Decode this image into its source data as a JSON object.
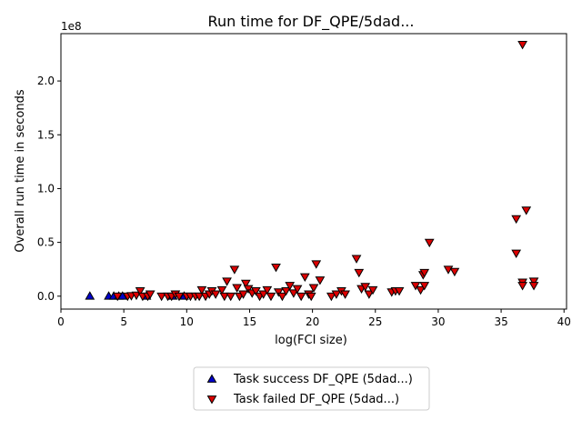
{
  "chart_data": {
    "type": "scatter",
    "title": "Run time for DF_QPE/5dad...",
    "xlabel": "log(FCI size)",
    "ylabel": "Overall run time in seconds",
    "y_offset_text": "1e8",
    "xlim": [
      0,
      40.2
    ],
    "ylim": [
      -0.12,
      2.44
    ],
    "x_ticks": [
      0,
      5,
      10,
      15,
      20,
      25,
      30,
      35,
      40
    ],
    "x_tick_labels": [
      "0",
      "5",
      "10",
      "15",
      "20",
      "25",
      "30",
      "35",
      "40"
    ],
    "y_ticks": [
      0.0,
      0.5,
      1.0,
      1.5,
      2.0
    ],
    "y_tick_labels": [
      "0.0",
      "0.5",
      "1.0",
      "1.5",
      "2.0"
    ],
    "grid": false,
    "legend_position": "below-center",
    "series": [
      {
        "name": "Task success DF_QPE (5dad...)",
        "marker": "triangle-up",
        "color": "#0000cc",
        "points": [
          [
            2.3,
            0.0
          ],
          [
            3.8,
            0.0
          ],
          [
            4.2,
            0.0
          ],
          [
            4.6,
            0.0
          ],
          [
            4.9,
            0.0
          ],
          [
            6.8,
            0.0
          ],
          [
            8.9,
            0.0
          ],
          [
            9.8,
            0.0
          ]
        ]
      },
      {
        "name": "Task failed DF_QPE (5dad...)",
        "marker": "triangle-down",
        "color": "#dd0000",
        "points": [
          [
            4.5,
            0.0
          ],
          [
            5.3,
            0.0
          ],
          [
            5.6,
            0.005
          ],
          [
            6.0,
            0.01
          ],
          [
            6.3,
            0.05
          ],
          [
            6.5,
            0.0
          ],
          [
            6.9,
            0.0
          ],
          [
            7.1,
            0.02
          ],
          [
            8.0,
            0.0
          ],
          [
            8.5,
            0.0
          ],
          [
            8.8,
            0.0
          ],
          [
            9.1,
            0.02
          ],
          [
            9.4,
            0.0
          ],
          [
            10.0,
            0.0
          ],
          [
            10.3,
            0.0
          ],
          [
            10.7,
            0.0
          ],
          [
            11.0,
            0.0
          ],
          [
            11.2,
            0.06
          ],
          [
            11.5,
            0.0
          ],
          [
            11.8,
            0.02
          ],
          [
            12.0,
            0.05
          ],
          [
            12.3,
            0.02
          ],
          [
            12.8,
            0.06
          ],
          [
            13.0,
            0.0
          ],
          [
            13.2,
            0.14
          ],
          [
            13.5,
            0.0
          ],
          [
            13.8,
            0.25
          ],
          [
            14.0,
            0.08
          ],
          [
            14.2,
            0.0
          ],
          [
            14.5,
            0.02
          ],
          [
            14.7,
            0.12
          ],
          [
            14.9,
            0.07
          ],
          [
            15.2,
            0.03
          ],
          [
            15.5,
            0.05
          ],
          [
            15.8,
            0.0
          ],
          [
            16.1,
            0.02
          ],
          [
            16.4,
            0.06
          ],
          [
            16.7,
            0.0
          ],
          [
            17.1,
            0.27
          ],
          [
            17.3,
            0.04
          ],
          [
            17.6,
            0.0
          ],
          [
            17.9,
            0.05
          ],
          [
            18.2,
            0.1
          ],
          [
            18.5,
            0.03
          ],
          [
            18.8,
            0.07
          ],
          [
            19.1,
            0.0
          ],
          [
            19.4,
            0.18
          ],
          [
            19.7,
            0.02
          ],
          [
            19.9,
            0.0
          ],
          [
            20.1,
            0.08
          ],
          [
            20.3,
            0.3
          ],
          [
            20.6,
            0.15
          ],
          [
            21.5,
            0.0
          ],
          [
            21.9,
            0.02
          ],
          [
            22.3,
            0.05
          ],
          [
            22.6,
            0.02
          ],
          [
            23.5,
            0.35
          ],
          [
            23.7,
            0.22
          ],
          [
            23.9,
            0.07
          ],
          [
            24.2,
            0.09
          ],
          [
            24.5,
            0.02
          ],
          [
            24.8,
            0.06
          ],
          [
            26.3,
            0.04
          ],
          [
            26.6,
            0.05
          ],
          [
            26.9,
            0.05
          ],
          [
            28.2,
            0.1
          ],
          [
            28.6,
            0.06
          ],
          [
            28.8,
            0.2
          ],
          [
            28.9,
            0.22
          ],
          [
            28.9,
            0.1
          ],
          [
            29.3,
            0.5
          ],
          [
            30.8,
            0.25
          ],
          [
            31.3,
            0.23
          ],
          [
            36.2,
            0.72
          ],
          [
            36.2,
            0.4
          ],
          [
            36.7,
            0.13
          ],
          [
            36.7,
            0.1
          ],
          [
            36.7,
            2.34
          ],
          [
            37.0,
            0.8
          ],
          [
            37.6,
            0.14
          ],
          [
            37.6,
            0.1
          ]
        ]
      }
    ]
  }
}
